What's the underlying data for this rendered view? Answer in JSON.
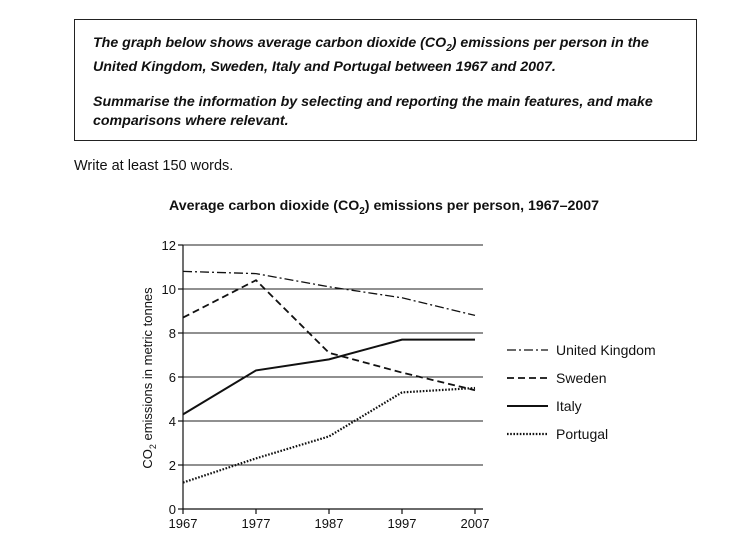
{
  "task": {
    "paragraph1_a": "The graph below shows average carbon dioxide (CO",
    "paragraph1_sub": "2",
    "paragraph1_b": ") emissions per person in the United Kingdom, Sweden, Italy and Portugal between 1967 and 2007.",
    "paragraph2": "Summarise the information by selecting and reporting the main features, and make comparisons where relevant."
  },
  "instruction": "Write at least 150 words.",
  "chart_data": {
    "type": "line",
    "title_a": "Average carbon dioxide (CO",
    "title_sub": "2",
    "title_b": ") emissions per person, 1967–2007",
    "xlabel": "",
    "ylabel_a": "CO",
    "ylabel_sub": "2",
    "ylabel_b": " emissions in metric tonnes",
    "x": [
      1967,
      1977,
      1987,
      1997,
      2007
    ],
    "x_tick_labels": [
      "1967",
      "1977",
      "1987",
      "1997",
      "2007"
    ],
    "ylim": [
      0,
      12
    ],
    "y_ticks": [
      0,
      2,
      4,
      6,
      8,
      10,
      12
    ],
    "y_tick_labels": [
      "0",
      "2",
      "4",
      "6",
      "8",
      "10",
      "12"
    ],
    "grid": "horizontal",
    "legend_position": "right",
    "series": [
      {
        "name": "United Kingdom",
        "style": "dash-dot",
        "values": [
          10.8,
          10.7,
          10.1,
          9.6,
          8.8
        ]
      },
      {
        "name": "Sweden",
        "style": "dashed",
        "values": [
          8.7,
          10.4,
          7.1,
          6.2,
          5.4
        ]
      },
      {
        "name": "Italy",
        "style": "solid",
        "values": [
          4.3,
          6.3,
          6.8,
          7.7,
          7.7
        ]
      },
      {
        "name": "Portugal",
        "style": "dotted",
        "values": [
          1.2,
          2.3,
          3.3,
          5.3,
          5.5
        ]
      }
    ]
  }
}
